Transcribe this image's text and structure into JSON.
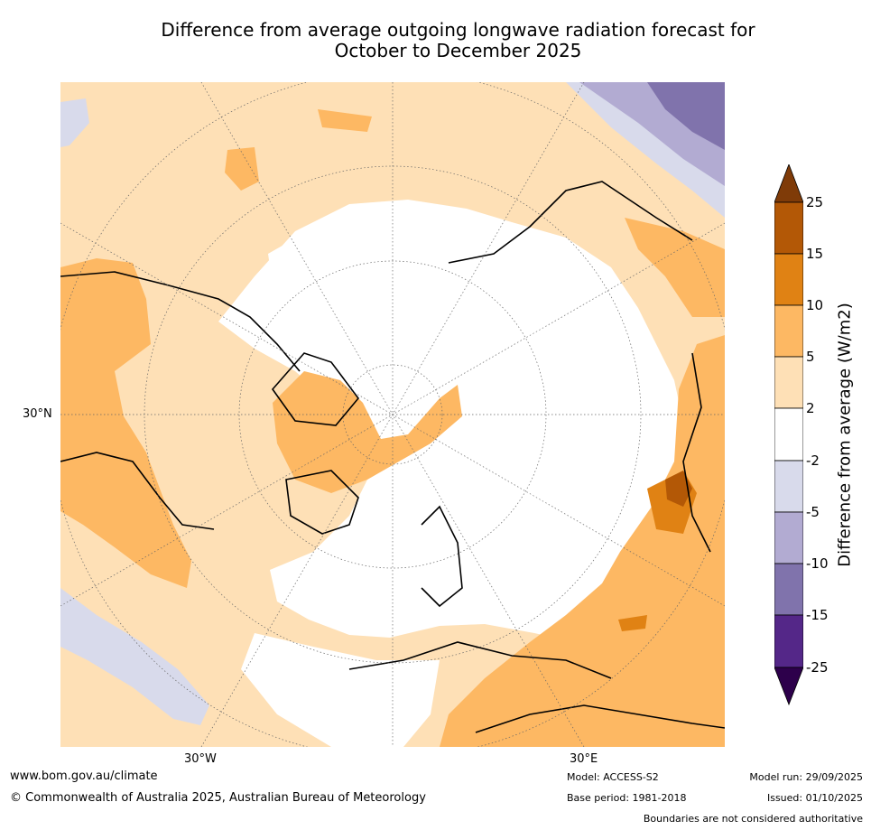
{
  "title": {
    "line1": "Difference from average outgoing longwave radiation forecast for",
    "line2": "October to December 2025"
  },
  "map": {
    "projection": "north-polar-stereographic",
    "lat_label": "30°N",
    "lon_labels": [
      "30°W",
      "30°E"
    ],
    "regions": [
      {
        "name": "north-america-central",
        "category": "5 to 10",
        "color": "#fdb863"
      },
      {
        "name": "baffin-greenland-strip",
        "category": "5 to 10",
        "color": "#fdb863"
      },
      {
        "name": "central-asia-middle-east",
        "category": "5 to 10",
        "color": "#fdb863"
      },
      {
        "name": "east-asia-hotspot",
        "category": "15 to 25",
        "color": "#b35806"
      },
      {
        "name": "east-pacific",
        "category": "-5 to -2",
        "color": "#d8daeb"
      },
      {
        "name": "north-pacific-corner",
        "category": "-10 to -5",
        "color": "#b2abd2"
      },
      {
        "name": "arctic-europe",
        "category": "-2 to 2",
        "color": "#ffffff"
      }
    ]
  },
  "colorbar": {
    "label": "Difference from average (W/m2)",
    "ticks": [
      "25",
      "15",
      "10",
      "5",
      "2",
      "-2",
      "-5",
      "-10",
      "-15",
      "-25"
    ],
    "colors": [
      "#7f3b08",
      "#b35806",
      "#e08214",
      "#fdb863",
      "#fee0b6",
      "#ffffff",
      "#d8daeb",
      "#b2abd2",
      "#8073ac",
      "#542788",
      "#2d004b"
    ]
  },
  "footer": {
    "website": "www.bom.gov.au/climate",
    "copyright": "© Commonwealth of Australia 2025, Australian Bureau of Meteorology",
    "model": "Model: ACCESS-S2",
    "base_period": "Base period: 1981-2018",
    "model_run": "Model run: 29/09/2025",
    "issued": "Issued: 01/10/2025",
    "disclaimer": "Boundaries are not considered authoritative"
  }
}
